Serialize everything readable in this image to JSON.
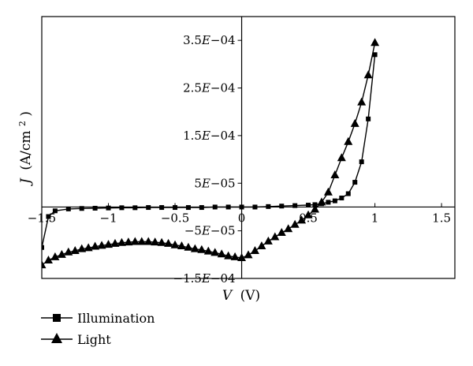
{
  "chart_data": {
    "type": "line",
    "title": "",
    "xlabel": "V (V)",
    "xlabel_var": "V",
    "xlabel_unit": "(V)",
    "ylabel": "J (A/cm2)",
    "ylabel_var": "J",
    "ylabel_unit": "(A/cm",
    "ylabel_sup": "2",
    "ylabel_close": ")",
    "xlim": [
      -1.5,
      1.6
    ],
    "ylim": [
      -0.00015,
      0.0004
    ],
    "grid": false,
    "legend_position": "bottom-left, below plot",
    "x_ticks": [
      {
        "value": -1.5,
        "label": "-1.5"
      },
      {
        "value": -1,
        "label": "-1"
      },
      {
        "value": -0.5,
        "label": "-0.5"
      },
      {
        "value": 0,
        "label": "0"
      },
      {
        "value": 0.5,
        "label": "0.5"
      },
      {
        "value": 1,
        "label": "1"
      },
      {
        "value": 1.5,
        "label": "1.5"
      }
    ],
    "y_ticks": [
      {
        "value": 0.00035,
        "label": "3.5E-04"
      },
      {
        "value": 0.00025,
        "label": "2.5E-04"
      },
      {
        "value": 0.00015,
        "label": "1.5E-04"
      },
      {
        "value": 5e-05,
        "label": "5E-05"
      },
      {
        "value": -5e-05,
        "label": "-5E-05"
      },
      {
        "value": -0.00015,
        "label": "-1.5E-04"
      }
    ],
    "series": [
      {
        "name": "Illumination",
        "marker": "square",
        "x": [
          -1.5,
          -1.45,
          -1.4,
          -1.3,
          -1.2,
          -1.1,
          -1.0,
          -0.9,
          -0.8,
          -0.7,
          -0.6,
          -0.5,
          -0.4,
          -0.3,
          -0.2,
          -0.1,
          0.0,
          0.1,
          0.2,
          0.3,
          0.4,
          0.5,
          0.55,
          0.6,
          0.65,
          0.7,
          0.75,
          0.8,
          0.85,
          0.9,
          0.95,
          1.0
        ],
        "y": [
          -8.5e-05,
          -2e-05,
          -8e-06,
          -4e-06,
          -3e-06,
          -2.5e-06,
          -2e-06,
          -1.5e-06,
          -1.5e-06,
          -1e-06,
          -1e-06,
          -1e-06,
          -1e-06,
          -1e-06,
          0.0,
          0.0,
          0.0,
          0.0,
          1e-06,
          2e-06,
          3e-06,
          4e-06,
          5e-06,
          7e-06,
          1e-05,
          1.3e-05,
          1.9e-05,
          2.8e-05,
          5.2e-05,
          9.5e-05,
          0.000185,
          0.00032
        ]
      },
      {
        "name": "Light",
        "marker": "triangle",
        "x": [
          -1.5,
          -1.45,
          -1.4,
          -1.35,
          -1.3,
          -1.25,
          -1.2,
          -1.15,
          -1.1,
          -1.05,
          -1.0,
          -0.95,
          -0.9,
          -0.85,
          -0.8,
          -0.75,
          -0.7,
          -0.65,
          -0.6,
          -0.55,
          -0.5,
          -0.45,
          -0.4,
          -0.35,
          -0.3,
          -0.25,
          -0.2,
          -0.15,
          -0.1,
          -0.05,
          0.0,
          0.05,
          0.1,
          0.15,
          0.2,
          0.25,
          0.3,
          0.35,
          0.4,
          0.45,
          0.5,
          0.55,
          0.6,
          0.65,
          0.7,
          0.75,
          0.8,
          0.85,
          0.9,
          0.95,
          1.0
        ],
        "y": [
          -0.000122,
          -0.000112,
          -0.000105,
          -0.0001,
          -9.5e-05,
          -9.2e-05,
          -8.8e-05,
          -8.6e-05,
          -8.3e-05,
          -8.1e-05,
          -7.9e-05,
          -7.7e-05,
          -7.5e-05,
          -7.4e-05,
          -7.3e-05,
          -7.3e-05,
          -7.3e-05,
          -7.4e-05,
          -7.5e-05,
          -7.7e-05,
          -8e-05,
          -8.2e-05,
          -8.5e-05,
          -8.8e-05,
          -9e-05,
          -9.3e-05,
          -9.6e-05,
          -9.9e-05,
          -0.000103,
          -0.000105,
          -0.000107,
          -0.000101,
          -9.2e-05,
          -8.2e-05,
          -7.2e-05,
          -6.3e-05,
          -5.4e-05,
          -4.6e-05,
          -3.7e-05,
          -2.8e-05,
          -1.7e-05,
          -5e-06,
          1e-05,
          3.1e-05,
          6.7e-05,
          0.000103,
          0.000137,
          0.000175,
          0.00022,
          0.000277,
          0.000345
        ]
      }
    ]
  }
}
